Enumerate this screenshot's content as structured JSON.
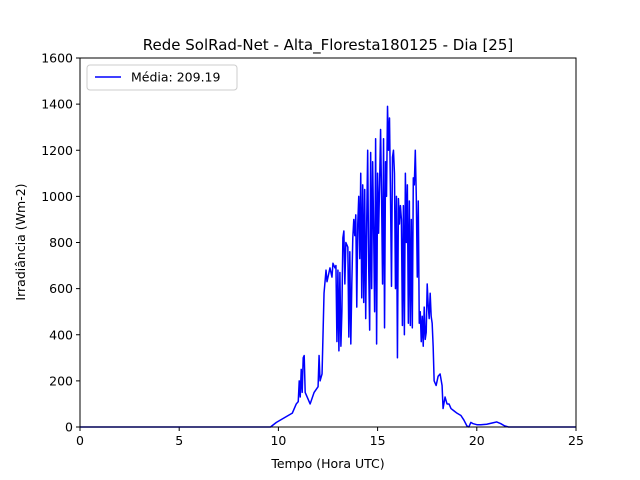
{
  "chart_data": {
    "type": "line",
    "title": "Rede SolRad-Net - Alta_Floresta180125 - Dia [25]",
    "xlabel": "Tempo (Hora UTC)",
    "ylabel": "Irradiância (Wm-2)",
    "xlim": [
      0,
      25
    ],
    "ylim": [
      0,
      1600
    ],
    "xticks": [
      0,
      5,
      10,
      15,
      20,
      25
    ],
    "yticks": [
      0,
      200,
      400,
      600,
      800,
      1000,
      1200,
      1400,
      1600
    ],
    "grid": false,
    "legend_position": "upper-left",
    "series": [
      {
        "name": "Média: 209.19",
        "color": "#0000ff",
        "points": [
          [
            0,
            0
          ],
          [
            9.6,
            0
          ],
          [
            9.9,
            20
          ],
          [
            10.3,
            40
          ],
          [
            10.7,
            60
          ],
          [
            10.9,
            100
          ],
          [
            11.0,
            110
          ],
          [
            11.05,
            200
          ],
          [
            11.1,
            130
          ],
          [
            11.15,
            250
          ],
          [
            11.2,
            150
          ],
          [
            11.25,
            300
          ],
          [
            11.3,
            310
          ],
          [
            11.35,
            150
          ],
          [
            11.5,
            120
          ],
          [
            11.6,
            100
          ],
          [
            11.8,
            150
          ],
          [
            12.0,
            175
          ],
          [
            12.05,
            310
          ],
          [
            12.1,
            200
          ],
          [
            12.2,
            230
          ],
          [
            12.3,
            580
          ],
          [
            12.4,
            680
          ],
          [
            12.45,
            630
          ],
          [
            12.6,
            690
          ],
          [
            12.7,
            650
          ],
          [
            12.75,
            710
          ],
          [
            12.85,
            690
          ],
          [
            12.9,
            700
          ],
          [
            12.95,
            370
          ],
          [
            13.0,
            680
          ],
          [
            13.05,
            330
          ],
          [
            13.1,
            670
          ],
          [
            13.15,
            350
          ],
          [
            13.2,
            500
          ],
          [
            13.25,
            820
          ],
          [
            13.3,
            850
          ],
          [
            13.35,
            620
          ],
          [
            13.4,
            800
          ],
          [
            13.5,
            780
          ],
          [
            13.55,
            390
          ],
          [
            13.6,
            760
          ],
          [
            13.65,
            360
          ],
          [
            13.7,
            620
          ],
          [
            13.75,
            820
          ],
          [
            13.8,
            900
          ],
          [
            13.85,
            830
          ],
          [
            13.9,
            920
          ],
          [
            13.95,
            520
          ],
          [
            14.0,
            880
          ],
          [
            14.05,
            1000
          ],
          [
            14.1,
            730
          ],
          [
            14.15,
            1100
          ],
          [
            14.2,
            560
          ],
          [
            14.25,
            1050
          ],
          [
            14.3,
            540
          ],
          [
            14.35,
            1030
          ],
          [
            14.4,
            470
          ],
          [
            14.45,
            880
          ],
          [
            14.5,
            1200
          ],
          [
            14.55,
            700
          ],
          [
            14.6,
            420
          ],
          [
            14.65,
            1190
          ],
          [
            14.7,
            600
          ],
          [
            14.75,
            1150
          ],
          [
            14.8,
            860
          ],
          [
            14.85,
            500
          ],
          [
            14.9,
            1250
          ],
          [
            14.95,
            360
          ],
          [
            15.0,
            1100
          ],
          [
            15.05,
            840
          ],
          [
            15.1,
            1050
          ],
          [
            15.15,
            1290
          ],
          [
            15.2,
            1000
          ],
          [
            15.25,
            620
          ],
          [
            15.3,
            1250
          ],
          [
            15.35,
            430
          ],
          [
            15.4,
            1150
          ],
          [
            15.45,
            1000
          ],
          [
            15.5,
            1390
          ],
          [
            15.55,
            1200
          ],
          [
            15.6,
            1340
          ],
          [
            15.65,
            1000
          ],
          [
            15.7,
            610
          ],
          [
            15.75,
            1170
          ],
          [
            15.8,
            1200
          ],
          [
            15.85,
            1100
          ],
          [
            15.9,
            600
          ],
          [
            15.95,
            1000
          ],
          [
            16.0,
            300
          ],
          [
            16.05,
            990
          ],
          [
            16.1,
            880
          ],
          [
            16.15,
            960
          ],
          [
            16.2,
            900
          ],
          [
            16.25,
            440
          ],
          [
            16.3,
            960
          ],
          [
            16.35,
            400
          ],
          [
            16.4,
            1100
          ],
          [
            16.45,
            800
          ],
          [
            16.5,
            1050
          ],
          [
            16.55,
            450
          ],
          [
            16.6,
            980
          ],
          [
            16.65,
            440
          ],
          [
            16.7,
            900
          ],
          [
            16.75,
            430
          ],
          [
            16.8,
            1080
          ],
          [
            16.85,
            1050
          ],
          [
            16.9,
            1200
          ],
          [
            16.95,
            1000
          ],
          [
            17.0,
            650
          ],
          [
            17.05,
            980
          ],
          [
            17.1,
            450
          ],
          [
            17.15,
            500
          ],
          [
            17.2,
            370
          ],
          [
            17.25,
            480
          ],
          [
            17.3,
            350
          ],
          [
            17.35,
            520
          ],
          [
            17.4,
            380
          ],
          [
            17.45,
            410
          ],
          [
            17.5,
            620
          ],
          [
            17.55,
            530
          ],
          [
            17.6,
            470
          ],
          [
            17.65,
            580
          ],
          [
            17.7,
            480
          ],
          [
            17.75,
            450
          ],
          [
            17.8,
            350
          ],
          [
            17.85,
            200
          ],
          [
            17.95,
            180
          ],
          [
            18.05,
            220
          ],
          [
            18.15,
            230
          ],
          [
            18.25,
            180
          ],
          [
            18.3,
            80
          ],
          [
            18.4,
            130
          ],
          [
            18.5,
            100
          ],
          [
            18.6,
            100
          ],
          [
            18.7,
            80
          ],
          [
            18.85,
            70
          ],
          [
            19.0,
            60
          ],
          [
            19.2,
            50
          ],
          [
            19.35,
            30
          ],
          [
            19.5,
            5
          ],
          [
            19.6,
            0
          ],
          [
            19.7,
            20
          ],
          [
            19.8,
            15
          ],
          [
            20.0,
            10
          ],
          [
            20.2,
            10
          ],
          [
            20.5,
            12
          ],
          [
            20.8,
            18
          ],
          [
            21.0,
            22
          ],
          [
            21.2,
            15
          ],
          [
            21.4,
            5
          ],
          [
            21.6,
            0
          ],
          [
            25,
            0
          ]
        ]
      }
    ]
  }
}
